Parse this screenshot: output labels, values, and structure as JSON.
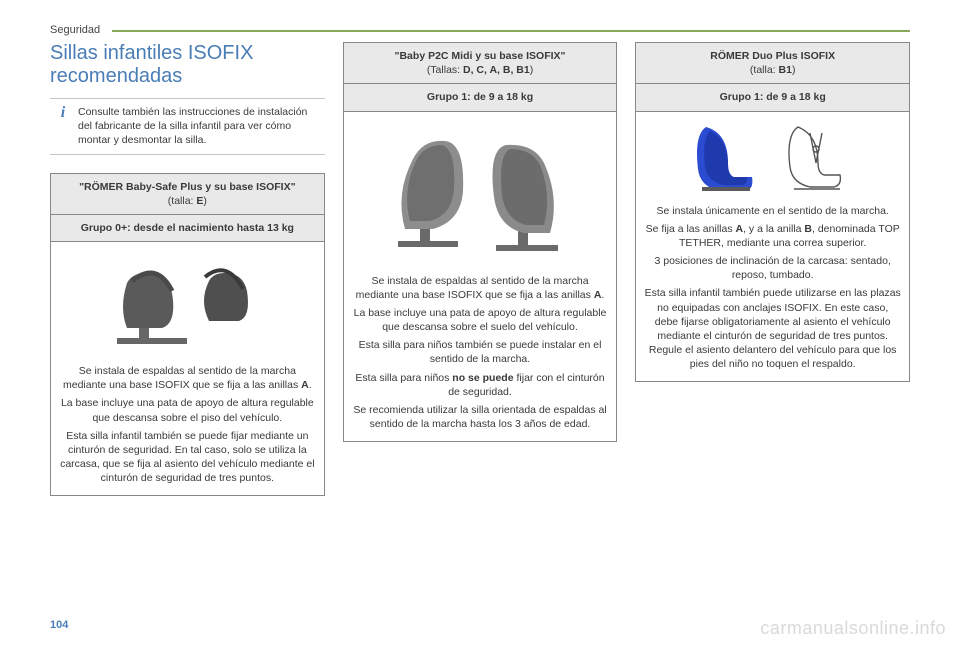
{
  "header": {
    "section": "Seguridad"
  },
  "page_number": "104",
  "watermark": "carmanualsonline.info",
  "colors": {
    "accent_green": "#8aa85a",
    "heading_blue": "#4a7db5",
    "cell_border": "#888888",
    "cell_fill": "#e9e9e9",
    "text": "#3a3a3a"
  },
  "title": "Sillas infantiles ISOFIX recomendadas",
  "info_note": "Consulte también las instrucciones de instalación del fabricante de la silla infantil para ver cómo montar y desmontar la silla.",
  "seats": [
    {
      "name_line1": "\"RÖMER Baby-Safe Plus y su base ISOFIX\"",
      "size_label": "(talla: ",
      "size_value": "E",
      "size_close": ")",
      "group": "Grupo 0+: desde el nacimiento hasta 13 kg",
      "image_kind": "infant-base-seat",
      "desc_html": "Se instala de espaldas al sentido de la marcha mediante una base ISOFIX que se fija a las anillas <b>A</b>.|La base incluye una pata de apoyo de altura regulable que descansa sobre el piso del vehículo.|Esta silla infantil también se puede fijar mediante un cinturón de seguridad. En tal caso, solo se utiliza la carcasa, que se fija al asiento del vehículo mediante el cinturón de seguridad de tres puntos."
    },
    {
      "name_line1": "\"Baby P2C Midi y su base ISOFIX\"",
      "size_label": "(Tallas: ",
      "size_value": "D, C, A, B, B1",
      "size_close": ")",
      "group": "Grupo 1: de 9 a 18 kg",
      "image_kind": "toddler-pair-seats",
      "desc_html": "Se instala de espaldas al sentido de la marcha mediante una base ISOFIX que se fija a las anillas <b>A</b>.|La base incluye una pata de apoyo de altura regulable que descansa sobre el suelo del vehículo.|Esta silla para niños también se puede instalar en el sentido de la marcha.|Esta silla para niños <b>no se puede</b> fijar con el cinturón de seguridad.|Se recomienda utilizar la silla orientada de espaldas al sentido de la marcha hasta los 3 años de edad."
    },
    {
      "name_line1": "RÖMER Duo Plus ISOFIX",
      "size_label": "(talla: ",
      "size_value": "B1",
      "size_close": ")",
      "group": "Grupo 1: de 9 a 18 kg",
      "image_kind": "forward-seat-blue",
      "desc_html": "Se instala únicamente en el sentido de la marcha.|Se fija a las anillas <b>A</b>, y a la anilla <b>B</b>, denominada TOP TETHER, mediante una correa superior.|3 posiciones de inclinación de la carcasa: sentado, reposo, tumbado.|Esta silla infantil también puede utilizarse en las plazas no equipadas con anclajes ISOFIX. En este caso, debe fijarse obligatoriamente al asiento el vehículo mediante el cinturón de seguridad de tres puntos. Regule el asiento delantero del vehículo para que los pies del niño no toquen el respaldo."
    }
  ]
}
